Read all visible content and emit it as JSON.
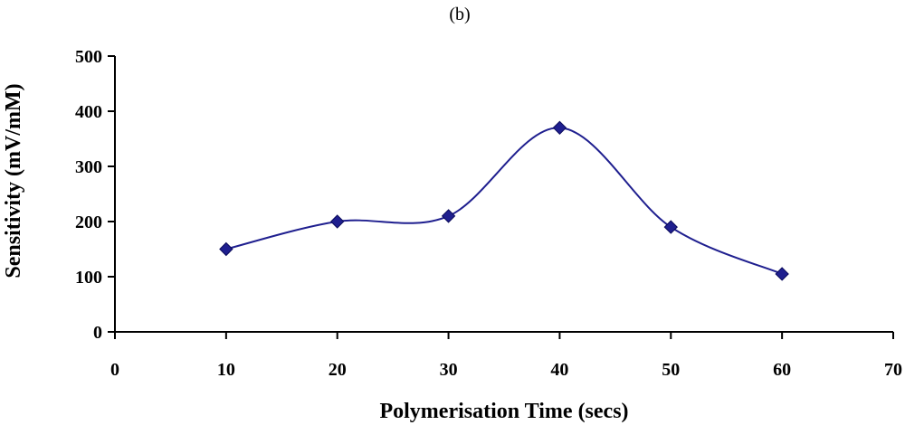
{
  "panel_label": "(b)",
  "colors": {
    "series": "#1F1F8F",
    "axis": "#000000"
  },
  "chart_data": {
    "type": "line",
    "smooth": true,
    "marker": "diamond",
    "xlabel": "Polymerisation Time (secs)",
    "ylabel": "Sensitivity (mV/mM)",
    "xlim": [
      0,
      70
    ],
    "ylim": [
      0,
      500
    ],
    "x_ticks": [
      0,
      10,
      20,
      30,
      40,
      50,
      60,
      70
    ],
    "y_ticks": [
      0,
      100,
      200,
      300,
      400,
      500
    ],
    "grid": false,
    "series": [
      {
        "x": [
          10,
          20,
          30,
          40,
          50,
          60
        ],
        "values": [
          150,
          200,
          210,
          370,
          190,
          105
        ]
      }
    ]
  }
}
